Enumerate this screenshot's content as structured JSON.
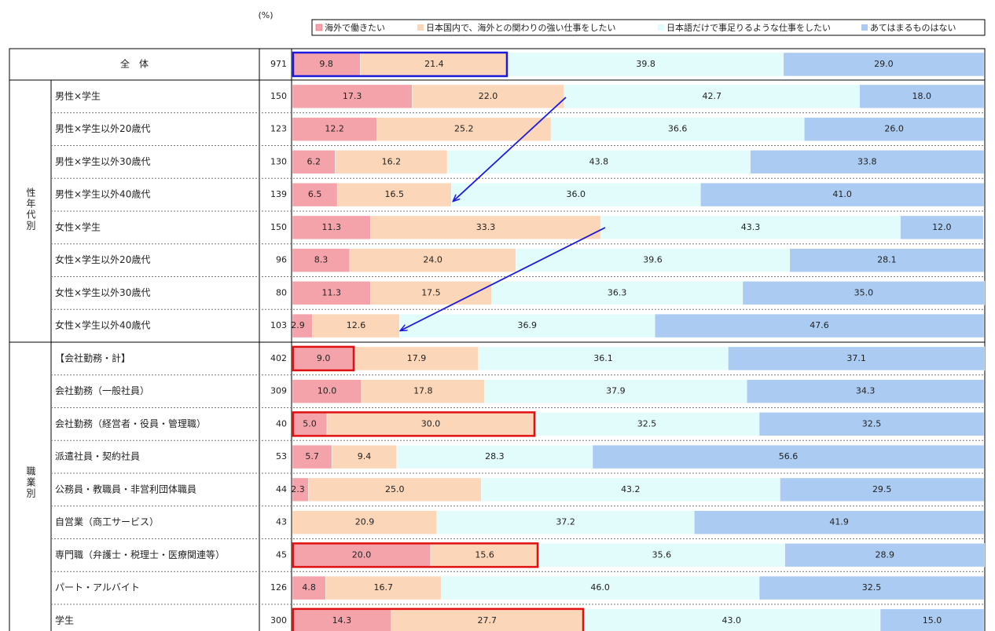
{
  "chart_data": {
    "type": "stacked_bar_h",
    "unit_label": "(%)",
    "groups": [
      "性年代別",
      "職業別"
    ],
    "categories": [
      "全　体",
      "男性×学生",
      "男性×学生以外20歳代",
      "男性×学生以外30歳代",
      "男性×学生以外40歳代",
      "女性×学生",
      "女性×学生以外20歳代",
      "女性×学生以外30歳代",
      "女性×学生以外40歳代",
      "【会社勤務・計】",
      "会社勤務（一般社員）",
      "会社勤務（経営者・役員・管理職）",
      "派遣社員・契約社員",
      "公務員・教職員・非営利団体職員",
      "自営業（商工サービス）",
      "専門職（弁護士・税理士・医療関連等）",
      "パート・アルバイト",
      "学生"
    ],
    "n": [
      971,
      150,
      123,
      130,
      139,
      150,
      96,
      80,
      103,
      402,
      309,
      40,
      53,
      44,
      43,
      45,
      126,
      300
    ],
    "xlim": [
      0,
      100
    ],
    "series": [
      {
        "name": "海外で働きたい",
        "color": "#f5a3ab",
        "values": [
          9.8,
          17.3,
          12.2,
          6.2,
          6.5,
          11.3,
          8.3,
          11.3,
          2.9,
          9.0,
          10.0,
          5.0,
          5.7,
          2.3,
          0,
          20.0,
          4.8,
          14.3
        ],
        "value_labels": [
          "9.8",
          "17.3",
          "12.2",
          "6.2",
          "6.5",
          "11.3",
          "8.3",
          "11.3",
          "2.9",
          "9.0",
          "10.0",
          "5.0",
          "5.7",
          "2.3",
          null,
          "20.0",
          "4.8",
          "14.3"
        ]
      },
      {
        "name": "日本国内で、海外との関わりの強い仕事をしたい",
        "color": "#fcd6b8",
        "values": [
          21.4,
          22.0,
          25.2,
          16.2,
          16.5,
          33.3,
          24.0,
          17.5,
          12.6,
          17.9,
          17.8,
          30.0,
          9.4,
          25.0,
          20.9,
          15.6,
          16.7,
          27.7
        ],
        "value_labels": [
          "21.4",
          "22.0",
          "25.2",
          "16.2",
          "16.5",
          "33.3",
          "24.0",
          "17.5",
          "12.6",
          "17.9",
          "17.8",
          "30.0",
          "9.4",
          "25.0",
          "20.9",
          "15.6",
          "16.7",
          "27.7"
        ]
      },
      {
        "name": "日本語だけで事足りるような仕事をしたい",
        "color": "#e2fbfb",
        "values": [
          39.8,
          42.7,
          36.6,
          43.8,
          36.0,
          43.3,
          39.6,
          36.3,
          36.9,
          36.1,
          37.9,
          32.5,
          28.3,
          43.2,
          37.2,
          35.6,
          46.0,
          43.0
        ],
        "value_labels": [
          "39.8",
          "42.7",
          "36.6",
          "43.8",
          "36.0",
          "43.3",
          "39.6",
          "36.3",
          "36.9",
          "36.1",
          "37.9",
          "32.5",
          "28.3",
          "43.2",
          "37.2",
          "35.6",
          "46.0",
          "43.0"
        ]
      },
      {
        "name": "あてはまるものはない",
        "color": "#abcbf2",
        "values": [
          29.0,
          18.0,
          26.0,
          33.8,
          41.0,
          12.0,
          28.1,
          35.0,
          47.6,
          37.1,
          34.3,
          32.5,
          56.6,
          29.5,
          41.9,
          28.9,
          32.5,
          15.0
        ],
        "value_labels": [
          "29.0",
          "18.0",
          "26.0",
          "33.8",
          "41.0",
          "12.0",
          "28.1",
          "35.0",
          "47.6",
          "37.1",
          "34.3",
          "32.5",
          "56.6",
          "29.5",
          "41.9",
          "28.9",
          "32.5",
          "15.0"
        ]
      }
    ]
  }
}
